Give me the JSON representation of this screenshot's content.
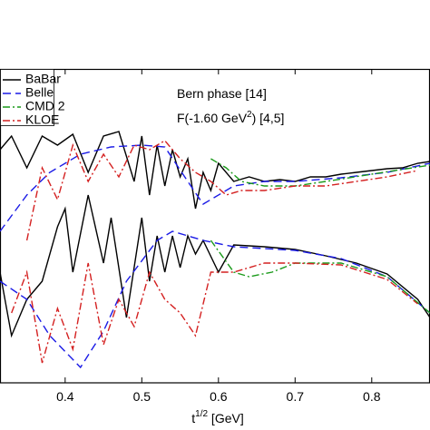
{
  "chart_data": {
    "type": "line",
    "annotations": [
      "Bern phase [14]"
    ],
    "annotation2": {
      "before": "F(-1.60 GeV",
      "sup": "2",
      "after": ") [4,5]"
    },
    "xlabel": {
      "before": "t",
      "sup": "1/2",
      "after": " [GeV]"
    },
    "xlim": [
      0.315,
      0.876
    ],
    "xticks": [
      0.4,
      0.5,
      0.6,
      0.7,
      0.8
    ],
    "ylim": [
      0,
      346
    ],
    "legend": "upper left",
    "series": [
      {
        "name": "BaBar",
        "color": "#000000",
        "dash": "solid",
        "x": [
          0.315,
          0.33,
          0.35,
          0.37,
          0.39,
          0.41,
          0.43,
          0.45,
          0.47,
          0.49,
          0.5,
          0.51,
          0.52,
          0.53,
          0.54,
          0.55,
          0.56,
          0.57,
          0.58,
          0.59,
          0.6,
          0.62,
          0.64,
          0.66,
          0.68,
          0.7,
          0.72,
          0.74,
          0.76,
          0.78,
          0.8,
          0.82,
          0.84,
          0.86,
          0.876
        ],
        "values": [
          257,
          272,
          237,
          272,
          262,
          274,
          232,
          272,
          277,
          222,
          272,
          207,
          262,
          217,
          257,
          227,
          247,
          192,
          232,
          212,
          242,
          222,
          227,
          222,
          224,
          222,
          227,
          227,
          230,
          232,
          234,
          236,
          237,
          242,
          244
        ],
        "x_lower": [
          0.315,
          0.33,
          0.35,
          0.37,
          0.39,
          0.4,
          0.41,
          0.43,
          0.45,
          0.46,
          0.48,
          0.5,
          0.51,
          0.52,
          0.53,
          0.54,
          0.55,
          0.56,
          0.57,
          0.58,
          0.6,
          0.62,
          0.66,
          0.7,
          0.74,
          0.78,
          0.82,
          0.86,
          0.876
        ],
        "values_lower": [
          122,
          52,
          92,
          112,
          172,
          192,
          122,
          207,
          132,
          182,
          72,
          182,
          112,
          162,
          122,
          162,
          127,
          162,
          142,
          157,
          122,
          152,
          150,
          147,
          140,
          132,
          120,
          92,
          72
        ]
      },
      {
        "name": "Belle",
        "color": "#1a1ae6",
        "dash": "dashed",
        "x": [
          0.315,
          0.35,
          0.38,
          0.42,
          0.46,
          0.5,
          0.53,
          0.56,
          0.58,
          0.62,
          0.66,
          0.7,
          0.76,
          0.82,
          0.876
        ],
        "values": [
          167,
          207,
          232,
          252,
          260,
          262,
          260,
          222,
          197,
          217,
          222,
          222,
          226,
          232,
          242
        ],
        "x_lower": [
          0.315,
          0.35,
          0.38,
          0.42,
          0.45,
          0.48,
          0.52,
          0.54,
          0.58,
          0.62,
          0.66,
          0.7,
          0.76,
          0.82,
          0.876
        ],
        "values_lower": [
          112,
          92,
          52,
          17,
          57,
          112,
          157,
          167,
          157,
          150,
          148,
          146,
          137,
          117,
          77
        ]
      },
      {
        "name": "CMD 2",
        "color": "#1a9a1a",
        "dash": "dashdot",
        "x": [
          0.59,
          0.61,
          0.63,
          0.66,
          0.7,
          0.74,
          0.8,
          0.876
        ],
        "values": [
          247,
          237,
          222,
          217,
          217,
          222,
          230,
          240
        ],
        "x_lower": [
          0.59,
          0.62,
          0.64,
          0.67,
          0.7,
          0.76,
          0.82,
          0.876
        ],
        "values_lower": [
          157,
          122,
          117,
          122,
          132,
          132,
          117,
          77
        ]
      },
      {
        "name": "KLOE",
        "color": "#d42020",
        "dash": "dashdot",
        "x": [
          0.35,
          0.37,
          0.39,
          0.41,
          0.43,
          0.45,
          0.47,
          0.49,
          0.51,
          0.53,
          0.55,
          0.57,
          0.59,
          0.61,
          0.63,
          0.66,
          0.7,
          0.74,
          0.78,
          0.82,
          0.86
        ],
        "values": [
          157,
          237,
          202,
          262,
          222,
          252,
          227,
          262,
          257,
          267,
          247,
          232,
          222,
          207,
          212,
          212,
          217,
          217,
          222,
          227,
          234
        ],
        "x_lower": [
          0.33,
          0.35,
          0.37,
          0.39,
          0.41,
          0.43,
          0.45,
          0.47,
          0.49,
          0.51,
          0.53,
          0.55,
          0.57,
          0.59,
          0.62,
          0.66,
          0.7,
          0.76,
          0.82,
          0.86
        ],
        "values_lower": [
          77,
          122,
          22,
          82,
          37,
          132,
          42,
          92,
          62,
          122,
          92,
          77,
          52,
          122,
          122,
          132,
          132,
          130,
          114,
          87
        ]
      }
    ]
  }
}
